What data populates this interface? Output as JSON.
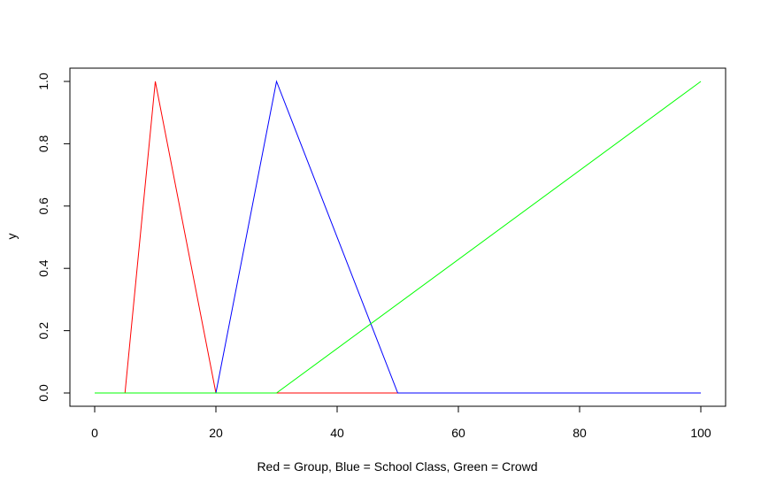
{
  "chart_data": {
    "type": "line",
    "xlabel": "Red = Group, Blue = School Class, Green = Crowd",
    "ylabel": "y",
    "xlim": [
      0,
      100
    ],
    "ylim": [
      0,
      1
    ],
    "x_ticks": [
      0,
      20,
      40,
      60,
      80,
      100
    ],
    "x_tick_labels": [
      "0",
      "20",
      "40",
      "60",
      "80",
      "100"
    ],
    "y_ticks": [
      0,
      0.2,
      0.4,
      0.6,
      0.8,
      1.0
    ],
    "y_tick_labels": [
      "0.0",
      "0.2",
      "0.4",
      "0.6",
      "0.8",
      "1.0"
    ],
    "grid": false,
    "series": [
      {
        "color": "#ff0000",
        "x": [
          0,
          5,
          10,
          20,
          50
        ],
        "y": [
          0,
          0,
          1,
          0,
          0
        ]
      },
      {
        "color": "#0000ff",
        "x": [
          20,
          30,
          50,
          100
        ],
        "y": [
          0,
          1,
          0,
          0
        ]
      },
      {
        "color": "#00ff00",
        "x": [
          0,
          30,
          100
        ],
        "y": [
          0,
          0,
          1
        ]
      }
    ]
  }
}
